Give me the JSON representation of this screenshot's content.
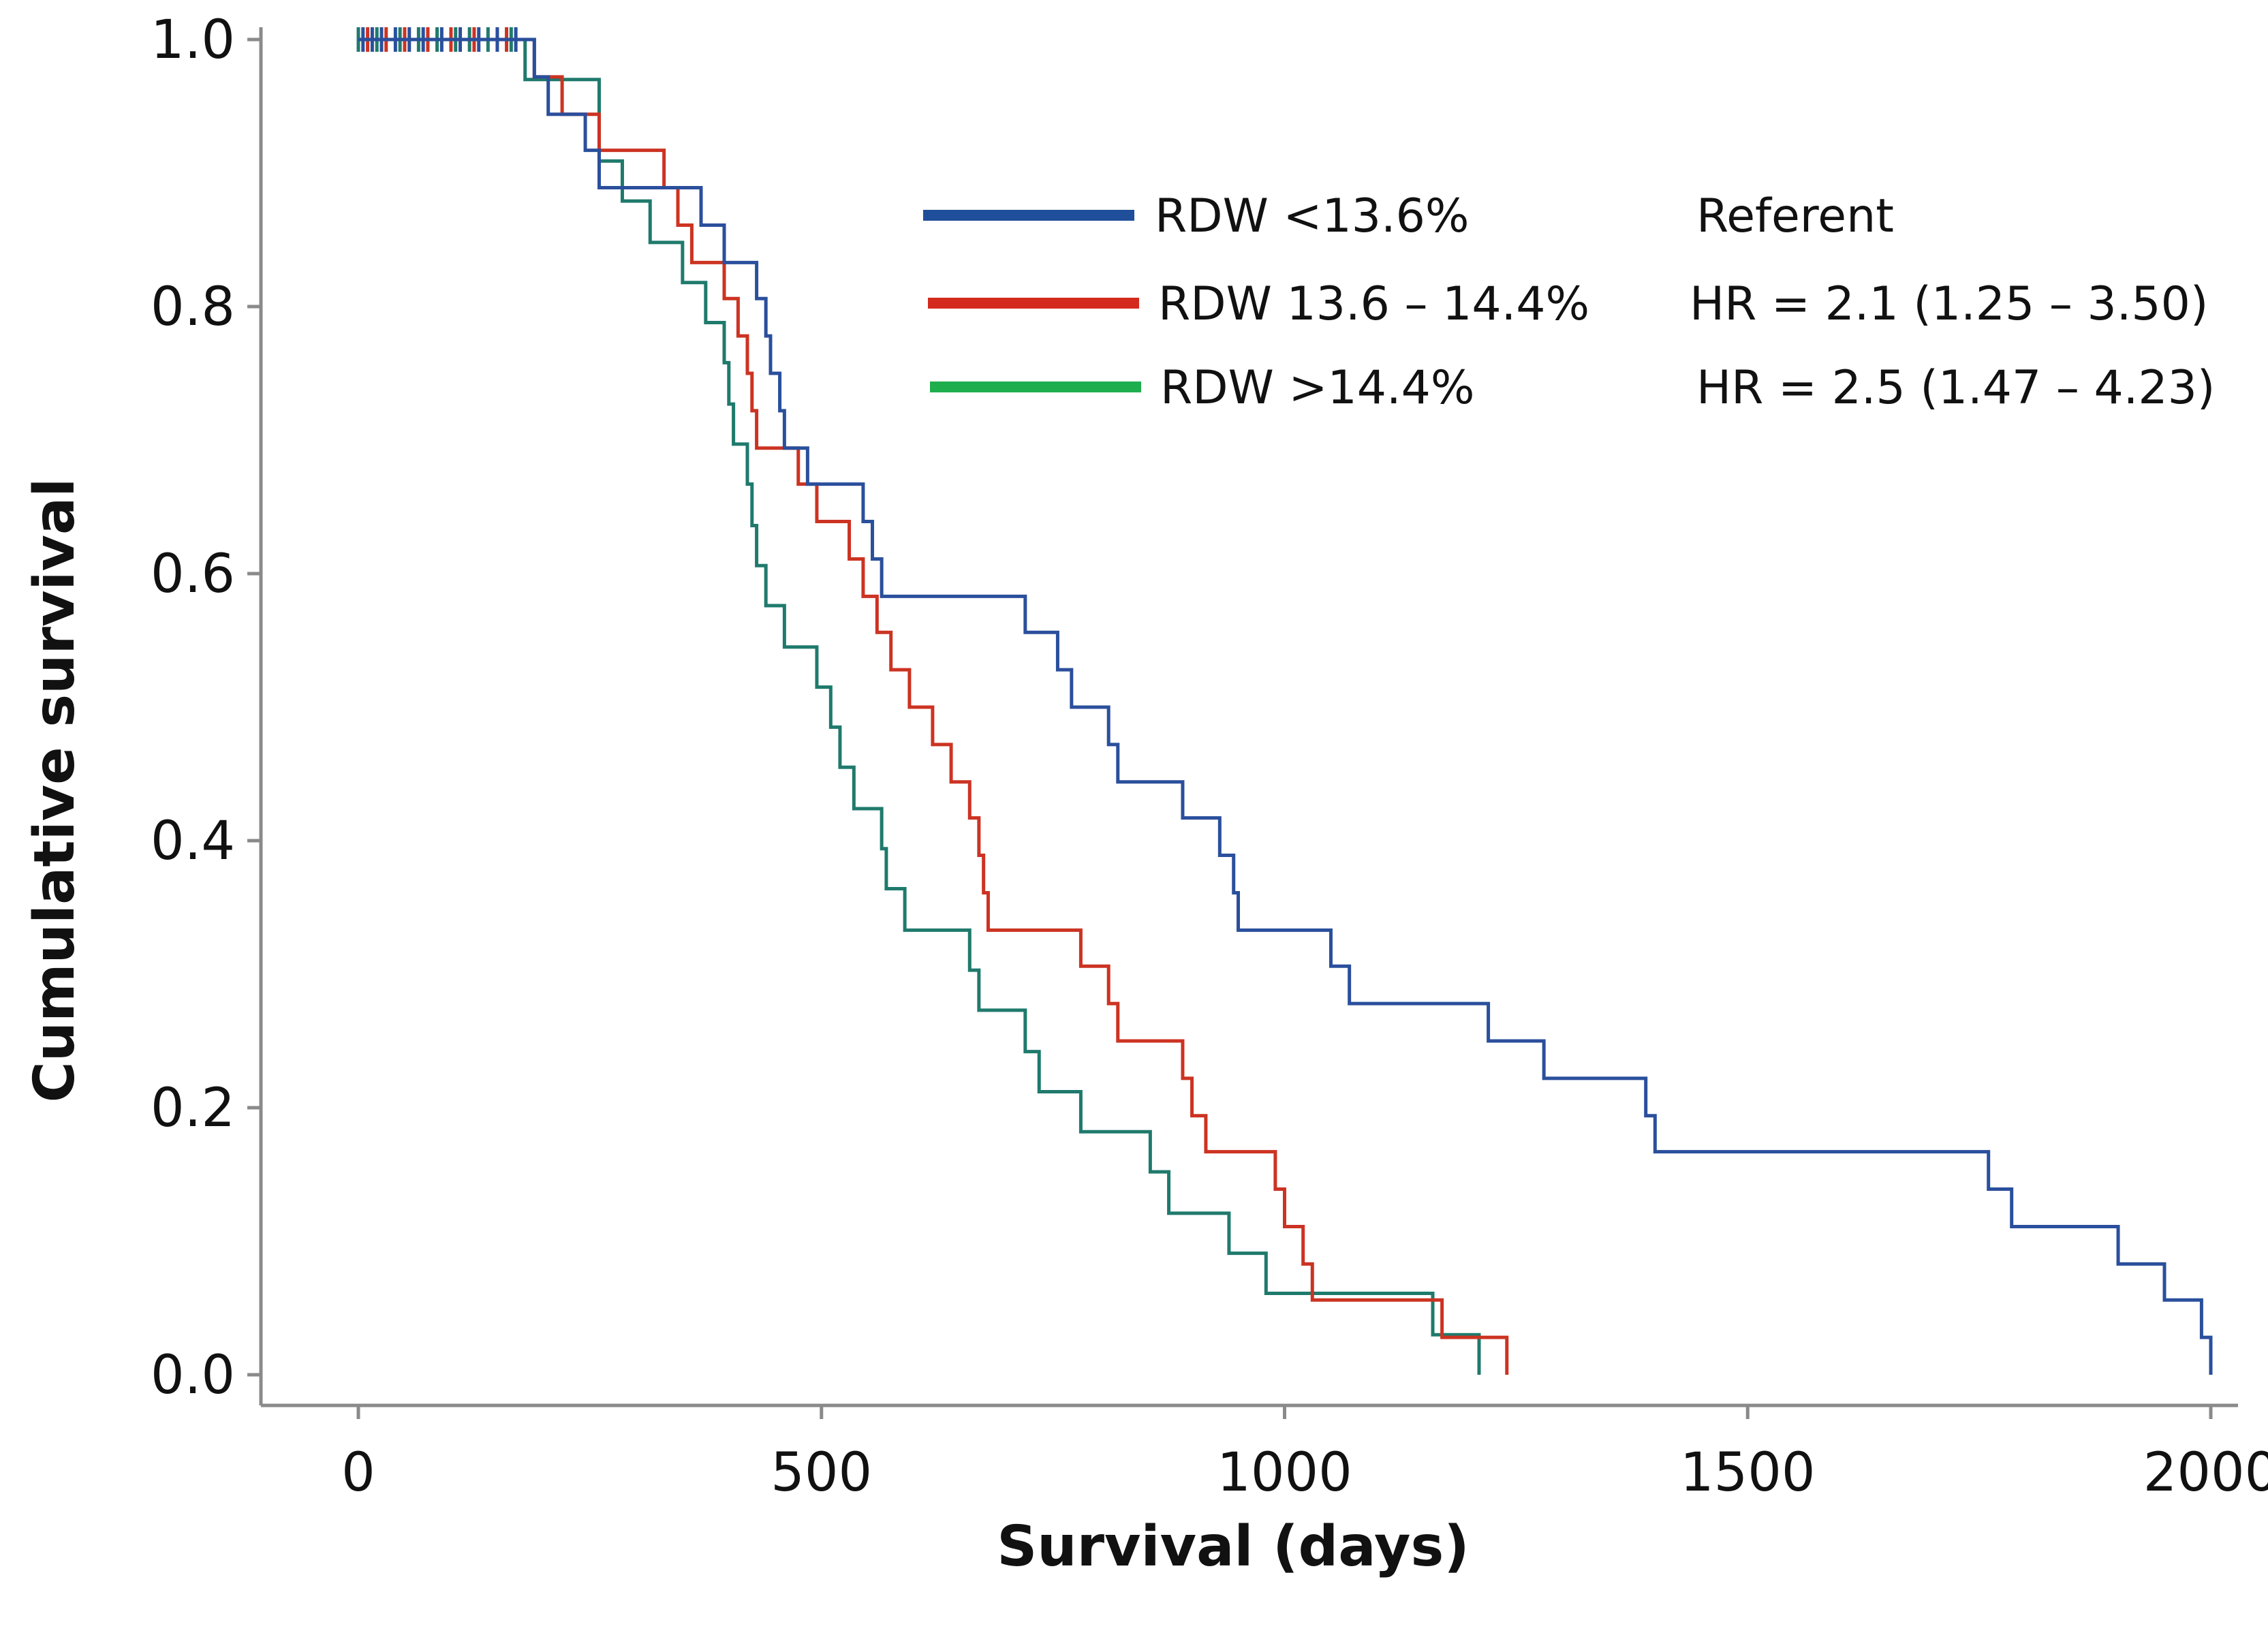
{
  "chart_data": {
    "type": "line",
    "subtype": "kaplan-meier step",
    "xlabel": "Survival (days)",
    "ylabel": "Cumulative survival",
    "xlim": [
      -100,
      2020
    ],
    "ylim": [
      -0.04,
      1.02
    ],
    "x_ticks": [
      0,
      500,
      1000,
      1500,
      2000
    ],
    "x_tick_labels": [
      "0",
      "500",
      "1000",
      "1500",
      "2000"
    ],
    "y_ticks": [
      0.0,
      0.2,
      0.4,
      0.6,
      0.8,
      1.0
    ],
    "y_tick_labels": [
      "0.0",
      "0.2",
      "0.4",
      "0.6",
      "0.8",
      "1.0"
    ],
    "legend_position": "top-right",
    "series": [
      {
        "name": "RDW <13.6%",
        "hr_text": "Referent",
        "color": "#2a4f9c",
        "legend_color": "#1f4e9a",
        "steps": [
          [
            0,
            1.0
          ],
          [
            190,
            0.972
          ],
          [
            205,
            0.944
          ],
          [
            245,
            0.917
          ],
          [
            260,
            0.889
          ],
          [
            370,
            0.861
          ],
          [
            395,
            0.833
          ],
          [
            430,
            0.806
          ],
          [
            440,
            0.778
          ],
          [
            445,
            0.75
          ],
          [
            455,
            0.722
          ],
          [
            460,
            0.694
          ],
          [
            485,
            0.667
          ],
          [
            545,
            0.639
          ],
          [
            555,
            0.611
          ],
          [
            565,
            0.583
          ],
          [
            720,
            0.556
          ],
          [
            755,
            0.528
          ],
          [
            770,
            0.5
          ],
          [
            810,
            0.472
          ],
          [
            820,
            0.444
          ],
          [
            890,
            0.417
          ],
          [
            930,
            0.389
          ],
          [
            945,
            0.361
          ],
          [
            950,
            0.333
          ],
          [
            1050,
            0.306
          ],
          [
            1070,
            0.278
          ],
          [
            1220,
            0.25
          ],
          [
            1280,
            0.222
          ],
          [
            1390,
            0.194
          ],
          [
            1400,
            0.167
          ],
          [
            1760,
            0.139
          ],
          [
            1785,
            0.111
          ],
          [
            1900,
            0.083
          ],
          [
            1950,
            0.056
          ],
          [
            1990,
            0.028
          ],
          [
            2000,
            0.0
          ]
        ],
        "censor_times": [
          5,
          15,
          25,
          40,
          55,
          70,
          90,
          110,
          130,
          150,
          170
        ]
      },
      {
        "name": "RDW 13.6 – 14.4%",
        "hr_text": "HR = 2.1 (1.25 – 3.50)",
        "color": "#cc3322",
        "legend_color": "#d42a1e",
        "steps": [
          [
            0,
            1.0
          ],
          [
            190,
            0.972
          ],
          [
            220,
            0.944
          ],
          [
            260,
            0.917
          ],
          [
            330,
            0.889
          ],
          [
            345,
            0.861
          ],
          [
            360,
            0.833
          ],
          [
            395,
            0.806
          ],
          [
            410,
            0.778
          ],
          [
            420,
            0.75
          ],
          [
            425,
            0.722
          ],
          [
            430,
            0.694
          ],
          [
            475,
            0.667
          ],
          [
            495,
            0.639
          ],
          [
            530,
            0.611
          ],
          [
            545,
            0.583
          ],
          [
            560,
            0.556
          ],
          [
            575,
            0.528
          ],
          [
            595,
            0.5
          ],
          [
            620,
            0.472
          ],
          [
            640,
            0.444
          ],
          [
            660,
            0.417
          ],
          [
            670,
            0.389
          ],
          [
            675,
            0.361
          ],
          [
            680,
            0.333
          ],
          [
            780,
            0.306
          ],
          [
            810,
            0.278
          ],
          [
            820,
            0.25
          ],
          [
            890,
            0.222
          ],
          [
            900,
            0.194
          ],
          [
            915,
            0.167
          ],
          [
            990,
            0.139
          ],
          [
            1000,
            0.111
          ],
          [
            1020,
            0.083
          ],
          [
            1030,
            0.056
          ],
          [
            1170,
            0.028
          ],
          [
            1240,
            0.0
          ]
        ],
        "censor_times": [
          10,
          30,
          50,
          75,
          100,
          125,
          160
        ]
      },
      {
        "name": "RDW >14.4%",
        "hr_text": "HR = 2.5 (1.47 – 4.23)",
        "color": "#1f7a6c",
        "legend_color": "#1fae4e",
        "steps": [
          [
            0,
            1.0
          ],
          [
            180,
            0.97
          ],
          [
            260,
            0.909
          ],
          [
            285,
            0.879
          ],
          [
            315,
            0.848
          ],
          [
            350,
            0.818
          ],
          [
            375,
            0.788
          ],
          [
            395,
            0.758
          ],
          [
            400,
            0.727
          ],
          [
            405,
            0.697
          ],
          [
            420,
            0.667
          ],
          [
            425,
            0.636
          ],
          [
            430,
            0.606
          ],
          [
            440,
            0.576
          ],
          [
            460,
            0.545
          ],
          [
            495,
            0.515
          ],
          [
            510,
            0.485
          ],
          [
            520,
            0.455
          ],
          [
            535,
            0.424
          ],
          [
            565,
            0.394
          ],
          [
            570,
            0.364
          ],
          [
            590,
            0.333
          ],
          [
            660,
            0.303
          ],
          [
            670,
            0.273
          ],
          [
            720,
            0.242
          ],
          [
            735,
            0.212
          ],
          [
            780,
            0.182
          ],
          [
            855,
            0.152
          ],
          [
            875,
            0.121
          ],
          [
            940,
            0.091
          ],
          [
            980,
            0.061
          ],
          [
            1160,
            0.03
          ],
          [
            1210,
            0.0
          ]
        ],
        "censor_times": [
          0,
          20,
          45,
          65,
          85,
          105,
          120,
          140,
          165
        ]
      }
    ]
  }
}
